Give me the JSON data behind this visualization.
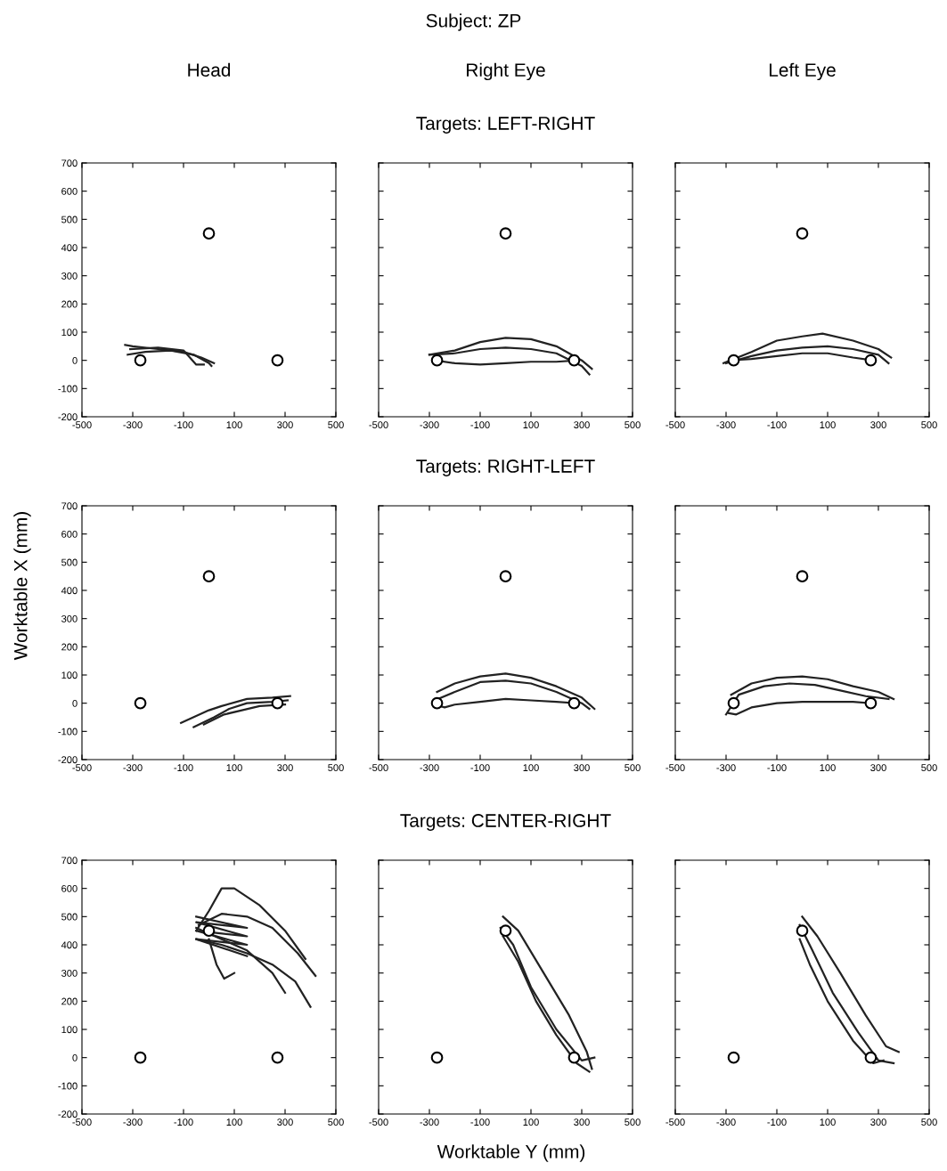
{
  "chart_data": [
    {
      "type": "other",
      "title": "Subject: ZP",
      "xlabel": "Worktable Y (mm)",
      "ylabel": "Worktable X (mm)"
    },
    {
      "type": "line",
      "title": "Head",
      "xlim": [
        -500,
        500
      ],
      "xticks": [
        -500,
        -300,
        -100,
        100,
        300,
        500
      ],
      "ylim": [
        -200,
        700
      ],
      "yticks": [
        -200,
        -100,
        0,
        100,
        200,
        300,
        400,
        500,
        600,
        700
      ],
      "grid": false,
      "series": [
        {
          "type": "scatter",
          "marker": "circle",
          "color": "#000000",
          "x": [
            -270,
            0,
            270
          ],
          "values": [
            0,
            450,
            0
          ]
        },
        {
          "type": "line",
          "color": "#222222",
          "x": [
            -330,
            -300,
            -200,
            -100,
            -30,
            20
          ],
          "values": [
            55,
            50,
            40,
            30,
            10,
            -10
          ]
        },
        {
          "type": "line",
          "color": "#222222",
          "x": [
            -320,
            -250,
            -150,
            -60,
            0,
            10
          ],
          "values": [
            20,
            30,
            35,
            20,
            -10,
            -20
          ]
        },
        {
          "type": "line",
          "color": "#222222",
          "x": [
            -310,
            -200,
            -100,
            -50,
            -20
          ],
          "values": [
            40,
            45,
            35,
            -15,
            -15
          ]
        }
      ]
    },
    {
      "type": "line",
      "title": "Right Eye",
      "subtitle": "Targets: LEFT-RIGHT",
      "tick_labels": "x",
      "xlim": [
        -500,
        500
      ],
      "xticks": [
        -500,
        -300,
        -100,
        100,
        300,
        500
      ],
      "ylim": [
        -200,
        700
      ],
      "yticks": [
        -200,
        -100,
        0,
        100,
        200,
        300,
        400,
        500,
        600,
        700
      ],
      "grid": false,
      "series": [
        {
          "type": "scatter",
          "marker": "circle",
          "color": "#000000",
          "x": [
            -270,
            0,
            270
          ],
          "values": [
            0,
            450,
            0
          ]
        },
        {
          "type": "line",
          "color": "#222222",
          "x": [
            -300,
            -200,
            -100,
            0,
            100,
            200,
            300,
            340
          ],
          "values": [
            20,
            35,
            65,
            80,
            75,
            50,
            0,
            -30
          ]
        },
        {
          "type": "line",
          "color": "#222222",
          "x": [
            -300,
            -200,
            -100,
            0,
            100,
            200,
            300,
            330
          ],
          "values": [
            20,
            25,
            40,
            45,
            40,
            25,
            -20,
            -50
          ]
        },
        {
          "type": "line",
          "color": "#222222",
          "x": [
            -280,
            -200,
            -100,
            0,
            100,
            200,
            280
          ],
          "values": [
            0,
            -10,
            -15,
            -10,
            -5,
            -5,
            0
          ]
        }
      ]
    },
    {
      "type": "line",
      "title": "Left Eye",
      "tick_labels": "x",
      "xlim": [
        -500,
        500
      ],
      "xticks": [
        -500,
        -300,
        -100,
        100,
        300,
        500
      ],
      "ylim": [
        -200,
        700
      ],
      "yticks": [
        -200,
        -100,
        0,
        100,
        200,
        300,
        400,
        500,
        600,
        700
      ],
      "grid": false,
      "series": [
        {
          "type": "scatter",
          "marker": "circle",
          "color": "#000000",
          "x": [
            -270,
            0,
            270
          ],
          "values": [
            0,
            450,
            0
          ]
        },
        {
          "type": "line",
          "color": "#222222",
          "x": [
            -310,
            -200,
            -100,
            0,
            80,
            200,
            300,
            350
          ],
          "values": [
            -10,
            30,
            70,
            85,
            95,
            70,
            40,
            10
          ]
        },
        {
          "type": "line",
          "color": "#222222",
          "x": [
            -300,
            -200,
            -100,
            0,
            100,
            200,
            300,
            340
          ],
          "values": [
            -10,
            15,
            35,
            45,
            50,
            40,
            20,
            -10
          ]
        },
        {
          "type": "line",
          "color": "#222222",
          "x": [
            -280,
            -200,
            -100,
            0,
            100,
            200,
            280
          ],
          "values": [
            0,
            5,
            15,
            25,
            25,
            10,
            0
          ]
        }
      ]
    },
    {
      "type": "line",
      "xlim": [
        -500,
        500
      ],
      "xticks": [
        -500,
        -300,
        -100,
        100,
        300,
        500
      ],
      "ylim": [
        -200,
        700
      ],
      "yticks": [
        -200,
        -100,
        0,
        100,
        200,
        300,
        400,
        500,
        600,
        700
      ],
      "grid": false,
      "series": [
        {
          "type": "scatter",
          "marker": "circle",
          "color": "#000000",
          "x": [
            -270,
            0,
            270
          ],
          "values": [
            0,
            450,
            0
          ]
        },
        {
          "type": "line",
          "color": "#222222",
          "x": [
            320,
            250,
            150,
            50,
            0,
            -50,
            -110
          ],
          "values": [
            25,
            20,
            15,
            -10,
            -25,
            -45,
            -70
          ]
        },
        {
          "type": "line",
          "color": "#222222",
          "x": [
            310,
            250,
            150,
            80,
            20,
            -60
          ],
          "values": [
            10,
            5,
            0,
            -20,
            -50,
            -85
          ]
        },
        {
          "type": "line",
          "color": "#222222",
          "x": [
            300,
            200,
            130,
            60,
            -20
          ],
          "values": [
            -5,
            -10,
            -25,
            -40,
            -75
          ]
        }
      ]
    },
    {
      "type": "line",
      "subtitle": "Targets: RIGHT-LEFT",
      "tick_labels": "x",
      "xlim": [
        -500,
        500
      ],
      "xticks": [
        -500,
        -300,
        -100,
        100,
        300,
        500
      ],
      "ylim": [
        -200,
        700
      ],
      "yticks": [
        -200,
        -100,
        0,
        100,
        200,
        300,
        400,
        500,
        600,
        700
      ],
      "grid": false,
      "series": [
        {
          "type": "scatter",
          "marker": "circle",
          "color": "#000000",
          "x": [
            -270,
            0,
            270
          ],
          "values": [
            0,
            450,
            0
          ]
        },
        {
          "type": "line",
          "color": "#222222",
          "x": [
            350,
            300,
            200,
            100,
            0,
            -100,
            -200,
            -270
          ],
          "values": [
            -20,
            20,
            60,
            90,
            105,
            95,
            70,
            40
          ]
        },
        {
          "type": "line",
          "color": "#222222",
          "x": [
            330,
            300,
            200,
            100,
            0,
            -100,
            -200,
            -280
          ],
          "values": [
            -20,
            0,
            40,
            70,
            80,
            75,
            40,
            10
          ]
        },
        {
          "type": "line",
          "color": "#222222",
          "x": [
            280,
            200,
            100,
            0,
            -100,
            -200,
            -240,
            -260
          ],
          "values": [
            0,
            5,
            10,
            15,
            5,
            -5,
            -15,
            -10
          ]
        }
      ]
    },
    {
      "type": "line",
      "tick_labels": "x",
      "xlim": [
        -500,
        500
      ],
      "xticks": [
        -500,
        -300,
        -100,
        100,
        300,
        500
      ],
      "ylim": [
        -200,
        700
      ],
      "yticks": [
        -200,
        -100,
        0,
        100,
        200,
        300,
        400,
        500,
        600,
        700
      ],
      "grid": false,
      "series": [
        {
          "type": "scatter",
          "marker": "circle",
          "color": "#000000",
          "x": [
            -270,
            0,
            270
          ],
          "values": [
            0,
            450,
            0
          ]
        },
        {
          "type": "line",
          "color": "#222222",
          "x": [
            360,
            300,
            200,
            100,
            0,
            -100,
            -200,
            -280
          ],
          "values": [
            15,
            40,
            60,
            85,
            95,
            90,
            70,
            30
          ]
        },
        {
          "type": "line",
          "color": "#222222",
          "x": [
            340,
            250,
            150,
            50,
            -50,
            -150,
            -250,
            -300
          ],
          "values": [
            15,
            25,
            45,
            65,
            70,
            60,
            30,
            -40
          ]
        },
        {
          "type": "line",
          "color": "#222222",
          "x": [
            270,
            200,
            100,
            0,
            -100,
            -200,
            -260,
            -290
          ],
          "values": [
            0,
            5,
            5,
            5,
            0,
            -15,
            -40,
            -35
          ]
        }
      ]
    },
    {
      "type": "line",
      "xlim": [
        -500,
        500
      ],
      "xticks": [
        -500,
        -300,
        -100,
        100,
        300,
        500
      ],
      "ylim": [
        -200,
        700
      ],
      "yticks": [
        -200,
        -100,
        0,
        100,
        200,
        300,
        400,
        500,
        600,
        700
      ],
      "grid": false,
      "series": [
        {
          "type": "scatter",
          "marker": "circle",
          "color": "#000000",
          "x": [
            -270,
            0,
            270
          ],
          "values": [
            0,
            450,
            0
          ]
        },
        {
          "type": "line",
          "color": "#222222",
          "x": [
            -50,
            0,
            50,
            100,
            200,
            300,
            380
          ],
          "values": [
            450,
            520,
            600,
            600,
            540,
            450,
            350
          ]
        },
        {
          "type": "line",
          "color": "#222222",
          "x": [
            -40,
            50,
            150,
            250,
            350,
            420
          ],
          "values": [
            470,
            510,
            500,
            460,
            370,
            290
          ]
        },
        {
          "type": "line",
          "color": "#222222",
          "x": [
            -50,
            50,
            150,
            250,
            340,
            400
          ],
          "values": [
            420,
            400,
            370,
            330,
            270,
            180
          ]
        },
        {
          "type": "line",
          "color": "#222222",
          "x": [
            -50,
            50,
            150,
            250,
            300
          ],
          "values": [
            460,
            420,
            380,
            300,
            230
          ]
        },
        {
          "type": "line",
          "color": "#222222",
          "x": [
            0,
            30,
            60,
            100
          ],
          "values": [
            420,
            330,
            280,
            300
          ]
        },
        {
          "type": "line",
          "color": "#222222",
          "x": [
            -50,
            150,
            -50,
            150,
            -50,
            150,
            -50,
            150
          ],
          "values": [
            500,
            460,
            480,
            430,
            450,
            400,
            420,
            360
          ]
        }
      ]
    },
    {
      "type": "line",
      "subtitle": "Targets: CENTER-RIGHT",
      "tick_labels": "x",
      "xlim": [
        -500,
        500
      ],
      "xticks": [
        -500,
        -300,
        -100,
        100,
        300,
        500
      ],
      "ylim": [
        -200,
        700
      ],
      "yticks": [
        -200,
        -100,
        0,
        100,
        200,
        300,
        400,
        500,
        600,
        700
      ],
      "grid": false,
      "series": [
        {
          "type": "scatter",
          "marker": "circle",
          "color": "#000000",
          "x": [
            -270,
            0,
            270
          ],
          "values": [
            0,
            450,
            0
          ]
        },
        {
          "type": "line",
          "color": "#222222",
          "x": [
            -10,
            50,
            150,
            250,
            320,
            340
          ],
          "values": [
            500,
            450,
            300,
            150,
            20,
            -40
          ]
        },
        {
          "type": "line",
          "color": "#222222",
          "x": [
            -20,
            30,
            100,
            200,
            300,
            350
          ],
          "values": [
            460,
            400,
            250,
            100,
            -10,
            0
          ]
        },
        {
          "type": "line",
          "color": "#222222",
          "x": [
            -10,
            50,
            120,
            200,
            280,
            330
          ],
          "values": [
            430,
            340,
            200,
            80,
            -20,
            -50
          ]
        }
      ]
    },
    {
      "type": "line",
      "tick_labels": "x",
      "xlim": [
        -500,
        500
      ],
      "xticks": [
        -500,
        -300,
        -100,
        100,
        300,
        500
      ],
      "ylim": [
        -200,
        700
      ],
      "yticks": [
        -200,
        -100,
        0,
        100,
        200,
        300,
        400,
        500,
        600,
        700
      ],
      "grid": false,
      "series": [
        {
          "type": "scatter",
          "marker": "circle",
          "color": "#000000",
          "x": [
            -270,
            0,
            270
          ],
          "values": [
            0,
            450,
            0
          ]
        },
        {
          "type": "line",
          "color": "#222222",
          "x": [
            0,
            60,
            150,
            250,
            330,
            380
          ],
          "values": [
            500,
            430,
            300,
            150,
            40,
            20
          ]
        },
        {
          "type": "line",
          "color": "#222222",
          "x": [
            -10,
            40,
            120,
            220,
            300,
            360
          ],
          "values": [
            470,
            380,
            230,
            90,
            -10,
            -20
          ]
        },
        {
          "type": "line",
          "color": "#222222",
          "x": [
            -10,
            30,
            100,
            200,
            280,
            320
          ],
          "values": [
            420,
            330,
            200,
            60,
            -20,
            -10
          ]
        }
      ]
    }
  ]
}
